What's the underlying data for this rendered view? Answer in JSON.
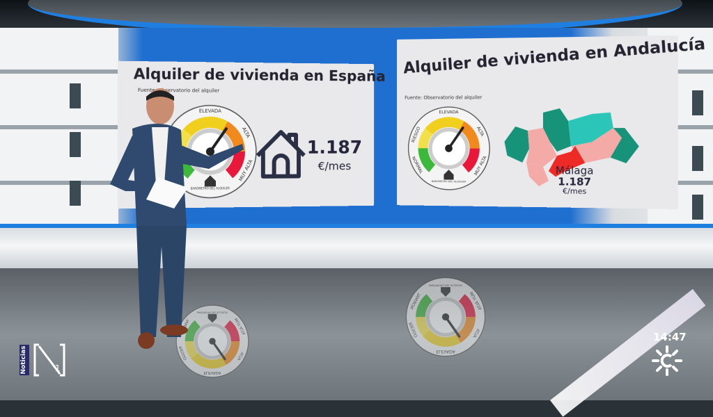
{
  "panels": {
    "spain": {
      "title": "Alquiler de vivienda en España",
      "source": "Fuente: Observatorio del alquiler",
      "value": "1.187",
      "unit": "€/mes",
      "icon": "house-outline-icon"
    },
    "andalucia": {
      "title": "Alquiler de vivienda en Andalucía",
      "source": "Fuente: Observatorio del alquiler",
      "highlight_province": "Málaga",
      "value": "1.187",
      "unit": "€/mes"
    }
  },
  "gauge": {
    "labels": {
      "normal": "NORMAL",
      "riesgo": "RIESGO",
      "elevada": "ELEVADA",
      "alta": "ALTA",
      "muy_alta": "MUY ALTA"
    },
    "caption": "BARÓMETRO DEL ALQUILER",
    "level": "ALTA",
    "colors": {
      "normal": "#3cb83a",
      "riesgo": "#f2e04a",
      "elevada": "#f0cf1e",
      "alta": "#f18a1c",
      "muy_alta": "#e8183a"
    }
  },
  "map_colors": {
    "teal_dark": "#17937a",
    "teal_light": "#2cc6b8",
    "pink": "#f4aaa6",
    "red": "#ee2a26"
  },
  "broadcast": {
    "channel_label": "Noticias",
    "channel_logo": "N1",
    "time": "14:47",
    "network_logo": "Canal Sur"
  },
  "colors": {
    "accent_blue": "#1e6fd0"
  }
}
